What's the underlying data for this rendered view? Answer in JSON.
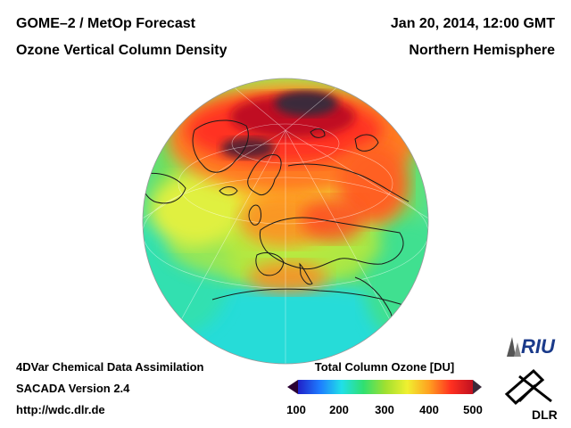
{
  "header": {
    "title_line1": "GOME–2 / MetOp Forecast",
    "title_line2": "Ozone Vertical Column Density",
    "date": "Jan 20, 2014, 12:00 GMT",
    "region": "Northern Hemisphere"
  },
  "footer": {
    "line1": "4DVar Chemical Data Assimilation",
    "line2": "SACADA Version 2.4",
    "url": "http://wdc.dlr.de"
  },
  "colorbar": {
    "title": "Total Column Ozone [DU]",
    "ticks": [
      "100",
      "200",
      "300",
      "400",
      "500"
    ],
    "range": [
      100,
      500
    ],
    "colors": [
      "#2a0033",
      "#2020c8",
      "#1e7cff",
      "#20e0e8",
      "#30e070",
      "#a0e030",
      "#f0f030",
      "#ffa020",
      "#ff3020",
      "#c01020",
      "#3a2a3a"
    ]
  },
  "map_data": {
    "projection": "orthographic",
    "center": "Northern Hemisphere / Europe",
    "variable": "Total Column Ozone",
    "units": "DU"
  },
  "logos": {
    "riu": "RIU",
    "dlr": "DLR"
  }
}
